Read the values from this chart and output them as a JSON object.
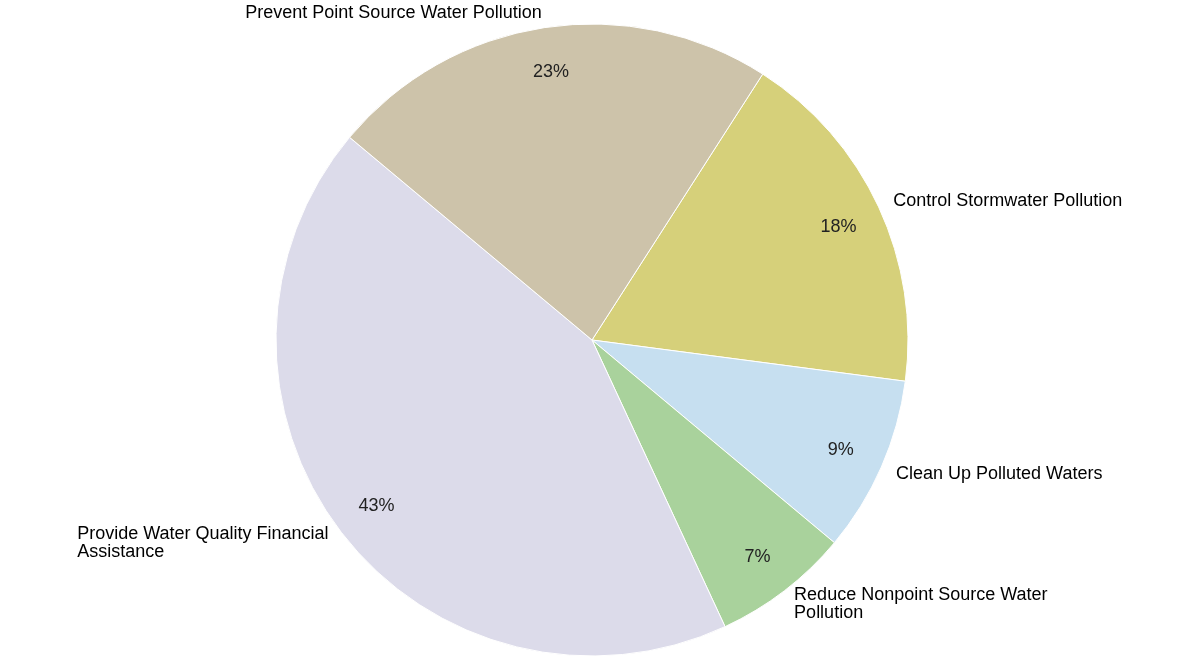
{
  "chart_data": {
    "type": "pie",
    "categories": [
      "Control Stormwater Pollution",
      "Clean Up Polluted Waters",
      "Reduce Nonpoint Source Water Pollution",
      "Provide Water Quality Financial Assistance",
      "Prevent Point Source Water Pollution"
    ],
    "values": [
      18,
      9,
      7,
      43,
      23
    ],
    "colors": [
      "#d6d07a",
      "#c6dff0",
      "#a9d29c",
      "#dcdbea",
      "#cdc3aa"
    ],
    "value_labels": [
      "18%",
      "9%",
      "7%",
      "43%",
      "23%"
    ]
  }
}
